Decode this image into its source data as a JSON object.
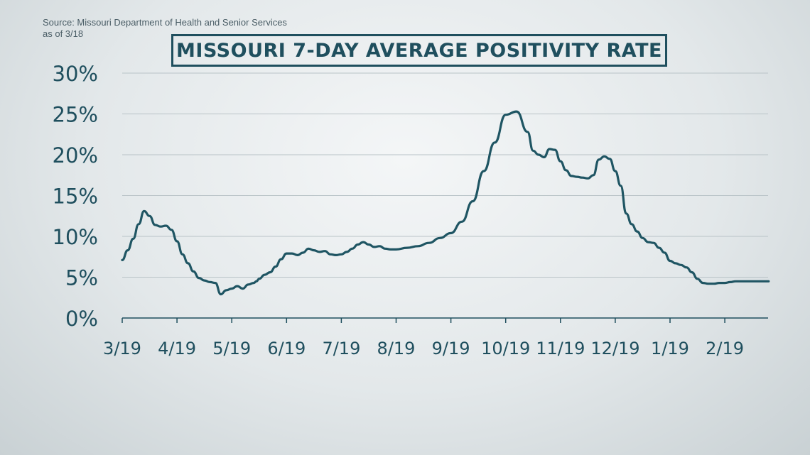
{
  "source": {
    "line1": "Source: Missouri Department of Health and Senior Services",
    "line2": "as of 3/18"
  },
  "colors": {
    "line": "#1f5563",
    "grid": "#b9c3c7",
    "axis": "#1f4f5e"
  },
  "chart_data": {
    "type": "line",
    "title": "MISSOURI 7-DAY AVERAGE POSITIVITY RATE",
    "xlabel": "",
    "ylabel": "",
    "ylim": [
      0,
      30
    ],
    "grid": true,
    "y_ticks": [
      0,
      5,
      10,
      15,
      20,
      25,
      30
    ],
    "y_tick_labels": [
      "0%",
      "5%",
      "10%",
      "15%",
      "20%",
      "25%",
      "30%"
    ],
    "x_tick_labels": [
      "3/19",
      "4/19",
      "5/19",
      "6/19",
      "7/19",
      "8/19",
      "9/19",
      "10/19",
      "11/19",
      "12/19",
      "1/19",
      "2/19"
    ],
    "x_tick_month_index": [
      0,
      1,
      2,
      3,
      4,
      5,
      6,
      7,
      8,
      9,
      10,
      11
    ],
    "x_range_months": [
      0,
      12.0
    ],
    "series": [
      {
        "month_index": [
          0,
          0.1,
          0.2,
          0.3,
          0.4,
          0.5,
          0.6,
          0.7,
          0.8,
          0.9,
          1.0,
          1.1,
          1.2,
          1.3,
          1.4,
          1.5,
          1.6,
          1.7,
          1.8,
          1.9,
          2.0,
          2.1,
          2.2,
          2.3,
          2.4,
          2.45,
          2.5,
          2.6,
          2.7,
          2.8,
          2.9,
          3.0,
          3.1,
          3.2,
          3.3,
          3.4,
          3.5,
          3.6,
          3.7,
          3.8,
          3.9,
          4.0,
          4.1,
          4.2,
          4.3,
          4.4,
          4.5,
          4.6,
          4.7,
          4.8,
          4.9,
          5.0,
          5.2,
          5.4,
          5.6,
          5.8,
          6.0,
          6.2,
          6.4,
          6.6,
          6.8,
          7.0,
          7.2,
          7.4,
          7.5,
          7.6,
          7.7,
          7.8,
          7.9,
          8.0,
          8.1,
          8.2,
          8.3,
          8.4,
          8.5,
          8.6,
          8.7,
          8.8,
          8.9,
          9.0,
          9.1,
          9.2,
          9.3,
          9.4,
          9.5,
          9.6,
          9.7,
          9.8,
          9.9,
          10.0,
          10.1,
          10.2,
          10.3,
          10.4,
          10.5,
          10.6,
          10.7,
          10.8,
          10.9,
          11.0,
          11.1,
          11.2,
          11.3,
          11.4,
          11.5,
          11.6,
          11.7,
          11.8
        ],
        "values": [
          7.1,
          8.3,
          9.7,
          11.5,
          13.1,
          12.5,
          11.4,
          11.2,
          11.3,
          10.8,
          9.4,
          7.8,
          6.7,
          5.7,
          4.9,
          4.6,
          4.4,
          4.3,
          2.9,
          3.4,
          3.6,
          3.9,
          3.6,
          4.1,
          4.3,
          4.5,
          4.8,
          5.3,
          5.6,
          6.3,
          7.2,
          7.9,
          7.9,
          7.7,
          8.0,
          8.5,
          8.3,
          8.1,
          8.2,
          7.8,
          7.7,
          7.8,
          8.1,
          8.5,
          9.0,
          9.3,
          9.0,
          8.7,
          8.8,
          8.5,
          8.4,
          8.4,
          8.6,
          8.8,
          9.2,
          9.8,
          10.4,
          11.8,
          14.3,
          18.0,
          21.5,
          24.9,
          25.3,
          22.8,
          20.5,
          20.0,
          19.7,
          20.7,
          20.6,
          19.2,
          18.1,
          17.4,
          17.3,
          17.2,
          17.1,
          17.5,
          19.4,
          19.8,
          19.5,
          18.0,
          16.2,
          12.8,
          11.5,
          10.6,
          9.8,
          9.3,
          9.2,
          8.6,
          8.0,
          7.0,
          6.7,
          6.5,
          6.2,
          5.6,
          4.8,
          4.3,
          4.2,
          4.2,
          4.3,
          4.3,
          4.4,
          4.5,
          4.5,
          4.5,
          4.5,
          4.5,
          4.5,
          4.5
        ]
      }
    ]
  }
}
